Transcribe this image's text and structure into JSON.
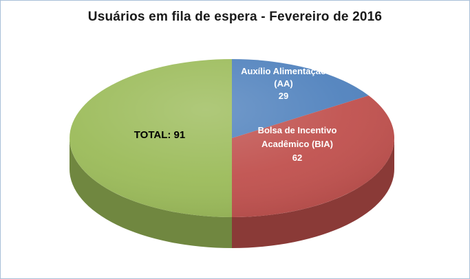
{
  "chart_data": {
    "type": "pie",
    "effect": "3d",
    "title": "Usuários em fila de espera - Fevereiro de 2016",
    "legend": "none",
    "start_angle_deg": 0,
    "direction": "clockwise",
    "total_of_values": 182,
    "note": "The green slice represents the overall total (91 = 29 + 62) and spans half of the pie; blue and red slices fill the other half.",
    "slices": [
      {
        "id": "aa",
        "label": "Auxílio Alimentação (AA)",
        "value": 29,
        "color": "#4F81BD",
        "label_lines": [
          "Auxílio Alimentação",
          "(AA)",
          "29"
        ],
        "label_color": "#FFFFFF"
      },
      {
        "id": "bia",
        "label": "Bolsa de Incentivo Acadêmico (BIA)",
        "value": 62,
        "color": "#C0504D",
        "label_lines": [
          "Bolsa de Incentivo",
          "Acadêmico (BIA)",
          "62"
        ],
        "label_color": "#FFFFFF"
      },
      {
        "id": "total",
        "label": "TOTAL",
        "value": 91,
        "color": "#9BBB59",
        "label_lines": [
          "TOTAL: 91"
        ],
        "label_color": "#000000"
      }
    ]
  }
}
